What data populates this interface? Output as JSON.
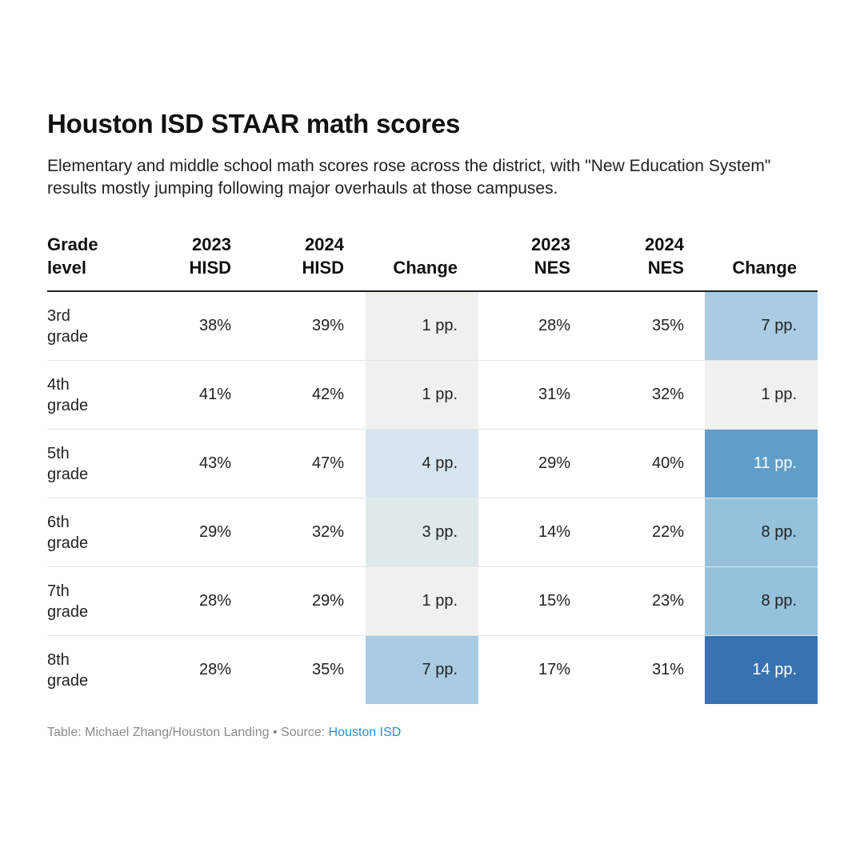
{
  "title": "Houston ISD STAAR math scores",
  "subtitle": "Elementary and middle school math scores rose across the district, with \"New Education System\" results mostly jumping following major overhauls at those campuses.",
  "chart_data": {
    "type": "table",
    "columns": [
      "Grade\nlevel",
      "2023\nHISD",
      "2024\nHISD",
      "Change",
      "2023\nNES",
      "2024\nNES",
      "Change"
    ],
    "rows": [
      {
        "grade": "3rd\ngrade",
        "hisd_2023": "38%",
        "hisd_2024": "39%",
        "hisd_change": "1 pp.",
        "hisd_change_value": 1,
        "nes_2023": "28%",
        "nes_2024": "35%",
        "nes_change": "7 pp.",
        "nes_change_value": 7
      },
      {
        "grade": "4th\ngrade",
        "hisd_2023": "41%",
        "hisd_2024": "42%",
        "hisd_change": "1 pp.",
        "hisd_change_value": 1,
        "nes_2023": "31%",
        "nes_2024": "32%",
        "nes_change": "1 pp.",
        "nes_change_value": 1
      },
      {
        "grade": "5th\ngrade",
        "hisd_2023": "43%",
        "hisd_2024": "47%",
        "hisd_change": "4 pp.",
        "hisd_change_value": 4,
        "nes_2023": "29%",
        "nes_2024": "40%",
        "nes_change": "11 pp.",
        "nes_change_value": 11
      },
      {
        "grade": "6th\ngrade",
        "hisd_2023": "29%",
        "hisd_2024": "32%",
        "hisd_change": "3 pp.",
        "hisd_change_value": 3,
        "nes_2023": "14%",
        "nes_2024": "22%",
        "nes_change": "8 pp.",
        "nes_change_value": 8
      },
      {
        "grade": "7th\ngrade",
        "hisd_2023": "28%",
        "hisd_2024": "29%",
        "hisd_change": "1 pp.",
        "hisd_change_value": 1,
        "nes_2023": "15%",
        "nes_2024": "23%",
        "nes_change": "8 pp.",
        "nes_change_value": 8
      },
      {
        "grade": "8th\ngrade",
        "hisd_2023": "28%",
        "hisd_2024": "35%",
        "hisd_change": "7 pp.",
        "hisd_change_value": 7,
        "nes_2023": "17%",
        "nes_2024": "31%",
        "nes_change": "14 pp.",
        "nes_change_value": 14
      }
    ],
    "color_scale": {
      "1": "#f0f1ec",
      "3": "#dfe9ea",
      "4": "#d7e6ee",
      "7": "#a9cce3",
      "8": "#95c1db",
      "11": "#609ec9",
      "14": "#3872b0"
    },
    "text_color_light": "#ffffff",
    "text_color_dark": "#222222"
  },
  "footer": {
    "credit": "Table: Michael Zhang/Houston Landing",
    "separator": " • ",
    "source_label": "Source: ",
    "source_link": "Houston ISD"
  }
}
